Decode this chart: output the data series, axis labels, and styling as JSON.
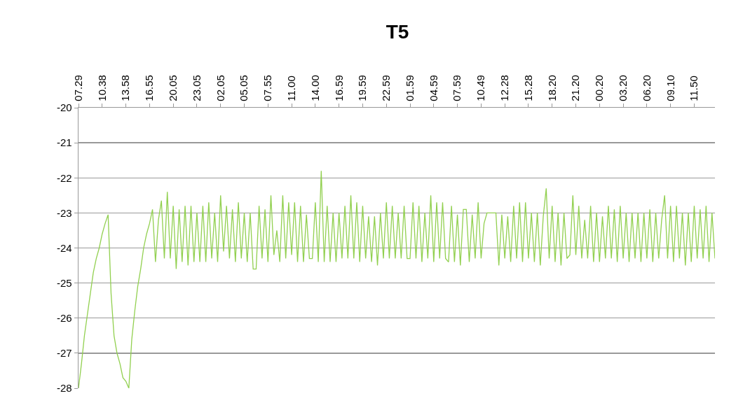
{
  "chart_data": {
    "type": "line",
    "title": "T5",
    "categories": [
      "07.29",
      null,
      null,
      null,
      null,
      null,
      null,
      null,
      "10.38",
      null,
      null,
      null,
      null,
      null,
      null,
      null,
      "13.58",
      null,
      null,
      null,
      null,
      null,
      null,
      null,
      "16.55",
      null,
      null,
      null,
      null,
      null,
      null,
      null,
      "20.05",
      null,
      null,
      null,
      null,
      null,
      null,
      null,
      "23.05",
      null,
      null,
      null,
      null,
      null,
      null,
      null,
      "02.05",
      null,
      null,
      null,
      null,
      null,
      null,
      null,
      "05.05",
      null,
      null,
      null,
      null,
      null,
      null,
      null,
      "07.55",
      null,
      null,
      null,
      null,
      null,
      null,
      null,
      "11.00",
      null,
      null,
      null,
      null,
      null,
      null,
      null,
      "14.00",
      null,
      null,
      null,
      null,
      null,
      null,
      null,
      "16.59",
      null,
      null,
      null,
      null,
      null,
      null,
      null,
      "19.59",
      null,
      null,
      null,
      null,
      null,
      null,
      null,
      "22.59",
      null,
      null,
      null,
      null,
      null,
      null,
      null,
      "01.59",
      null,
      null,
      null,
      null,
      null,
      null,
      null,
      "04.59",
      null,
      null,
      null,
      null,
      null,
      null,
      null,
      "07.59",
      null,
      null,
      null,
      null,
      null,
      null,
      null,
      "10.49",
      null,
      null,
      null,
      null,
      null,
      null,
      null,
      "12.28",
      null,
      null,
      null,
      null,
      null,
      null,
      null,
      "15.28",
      null,
      null,
      null,
      null,
      null,
      null,
      null,
      "18.20",
      null,
      null,
      null,
      null,
      null,
      null,
      null,
      "21.20",
      null,
      null,
      null,
      null,
      null,
      null,
      null,
      "00.20",
      null,
      null,
      null,
      null,
      null,
      null,
      null,
      "03.20",
      null,
      null,
      null,
      null,
      null,
      null,
      null,
      "06.20",
      null,
      null,
      null,
      null,
      null,
      null,
      null,
      "09.10",
      null,
      null,
      null,
      null,
      null,
      null,
      null,
      "11.50",
      null,
      null,
      null,
      null,
      null,
      null,
      null
    ],
    "series": [
      {
        "color": "#92d050",
        "values": [
          -28,
          -27.3,
          -26.5,
          -25.9,
          -25.3,
          -24.7,
          -24.3,
          -24.0,
          -23.6,
          -23.3,
          -23.05,
          -25.3,
          -26.5,
          -27.0,
          -27.3,
          -27.7,
          -27.8,
          -28.0,
          -26.6,
          -25.8,
          -25.1,
          -24.6,
          -24.0,
          -23.6,
          -23.3,
          -22.9,
          -24.4,
          -23.2,
          -22.65,
          -24.3,
          -22.4,
          -24.3,
          -22.8,
          -24.6,
          -22.9,
          -24.4,
          -22.8,
          -24.5,
          -22.8,
          -24.4,
          -23.0,
          -24.4,
          -22.8,
          -24.4,
          -22.7,
          -24.3,
          -23.0,
          -24.4,
          -22.5,
          -24.1,
          -22.8,
          -24.3,
          -22.9,
          -24.4,
          -22.7,
          -24.3,
          -23.0,
          -24.4,
          -23.0,
          -24.6,
          -24.6,
          -22.8,
          -24.3,
          -22.9,
          -24.4,
          -22.5,
          -24.2,
          -23.5,
          -24.4,
          -22.5,
          -24.3,
          -22.7,
          -24.2,
          -22.7,
          -24.4,
          -22.8,
          -24.4,
          -23.05,
          -24.3,
          -24.3,
          -22.7,
          -24.4,
          -21.8,
          -24.4,
          -22.8,
          -24.4,
          -23.0,
          -24.4,
          -23.0,
          -24.3,
          -22.8,
          -24.3,
          -22.5,
          -24.3,
          -22.7,
          -24.4,
          -22.8,
          -24.3,
          -23.1,
          -24.4,
          -23.1,
          -24.5,
          -23.0,
          -24.3,
          -22.7,
          -24.3,
          -22.8,
          -24.3,
          -23.0,
          -24.3,
          -22.8,
          -24.3,
          -24.3,
          -22.7,
          -24.3,
          -22.8,
          -24.4,
          -23.0,
          -24.3,
          -22.5,
          -24.4,
          -22.7,
          -24.3,
          -22.7,
          -24.3,
          -24.4,
          -22.8,
          -24.4,
          -23.05,
          -24.5,
          -22.9,
          -22.9,
          -24.4,
          -23.05,
          -24.3,
          -22.7,
          -24.3,
          -23.3,
          -23.0,
          -23.0,
          -23.0,
          -23.0,
          -24.5,
          -23.05,
          -24.3,
          -23.1,
          -24.4,
          -22.8,
          -24.3,
          -22.7,
          -24.4,
          -22.7,
          -24.3,
          -23.0,
          -24.4,
          -23.0,
          -24.5,
          -23.1,
          -22.3,
          -24.3,
          -22.8,
          -24.4,
          -23.0,
          -24.5,
          -23.0,
          -24.3,
          -24.2,
          -22.5,
          -24.2,
          -22.8,
          -24.3,
          -23.2,
          -24.3,
          -22.8,
          -24.4,
          -23.0,
          -24.4,
          -23.1,
          -24.3,
          -22.8,
          -24.3,
          -22.9,
          -24.4,
          -22.8,
          -24.3,
          -23.0,
          -24.4,
          -23.0,
          -24.3,
          -23.0,
          -24.4,
          -23.0,
          -24.3,
          -22.9,
          -24.4,
          -23.0,
          -24.3,
          -23.2,
          -22.5,
          -24.3,
          -22.8,
          -24.4,
          -22.8,
          -24.3,
          -23.0,
          -24.5,
          -23.0,
          -24.4,
          -22.8,
          -24.3,
          -22.9,
          -24.3,
          -22.8,
          -24.4,
          -23.0,
          -24.3
        ]
      }
    ],
    "ylim": [
      -28,
      -20
    ],
    "yticks": [
      -20,
      -21,
      -22,
      -23,
      -24,
      -25,
      -26,
      -27,
      -28
    ],
    "grid": "y",
    "marker": "none"
  }
}
